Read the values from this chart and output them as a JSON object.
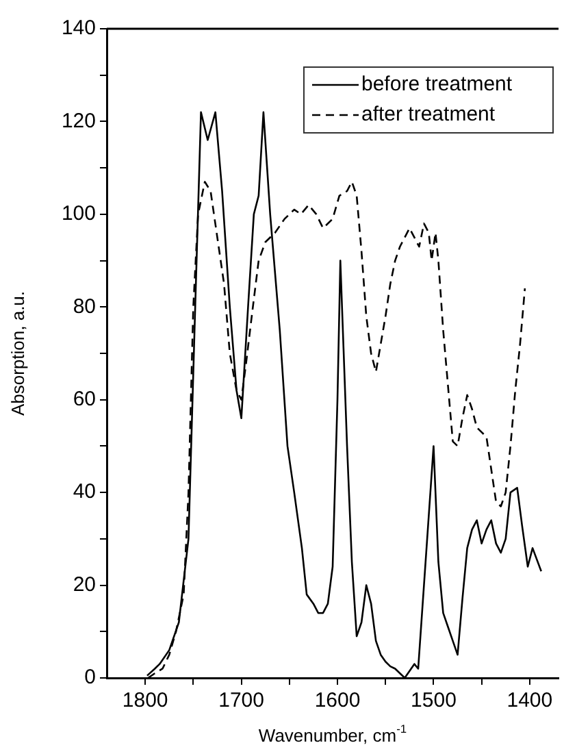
{
  "chart_data": {
    "type": "line",
    "xlabel": "Wavenumber, cm$^{-1}$",
    "ylabel": "Absorption, a.u.",
    "xlim": [
      1840,
      1370
    ],
    "ylim": [
      0,
      140
    ],
    "xticks": [
      1800,
      {
        "value": 1750,
        "label": null
      },
      1700,
      {
        "value": 1650,
        "label": null
      },
      1600,
      {
        "value": 1550,
        "label": null
      },
      1500,
      {
        "value": 1450,
        "label": null
      },
      1400
    ],
    "yticks": [
      0,
      {
        "value": 10,
        "label": null
      },
      20,
      {
        "value": 30,
        "label": null
      },
      40,
      {
        "value": 50,
        "label": null
      },
      60,
      {
        "value": 70,
        "label": null
      },
      80,
      {
        "value": 90,
        "label": null
      },
      100,
      {
        "value": 110,
        "label": null
      },
      120,
      {
        "value": 130,
        "label": null
      },
      140
    ],
    "legend": "top right",
    "grid": false,
    "marker": "none",
    "series": [
      {
        "name": "before treatment",
        "color": "#000000",
        "line_style": "solid",
        "x": [
          1798,
          1790,
          1785,
          1775,
          1765,
          1755,
          1748,
          1742,
          1735,
          1727,
          1720,
          1712,
          1705,
          1700,
          1693,
          1687,
          1682,
          1677,
          1670,
          1660,
          1652,
          1645,
          1637,
          1632,
          1625,
          1620,
          1615,
          1610,
          1605,
          1600,
          1597,
          1590,
          1585,
          1580,
          1575,
          1570,
          1565,
          1560,
          1555,
          1550,
          1545,
          1540,
          1535,
          1530,
          1520,
          1516,
          1510,
          1505,
          1500,
          1495,
          1490,
          1485,
          1480,
          1475,
          1470,
          1465,
          1460,
          1455,
          1450,
          1445,
          1440,
          1435,
          1430,
          1425,
          1420,
          1413,
          1408,
          1402,
          1397,
          1388
        ],
        "values": [
          0.5,
          2,
          3,
          6,
          12,
          30,
          80,
          122,
          116,
          122,
          105,
          80,
          62,
          56,
          80,
          100,
          104,
          122,
          100,
          75,
          50,
          40,
          28,
          18,
          16,
          14,
          14,
          16,
          24,
          60,
          90,
          50,
          25,
          9,
          12,
          20,
          16,
          8,
          5,
          3.5,
          2.5,
          2,
          1,
          0,
          3,
          2,
          20,
          35,
          50,
          25,
          14,
          11,
          8,
          5,
          17,
          28,
          32,
          34,
          29,
          32,
          34,
          29,
          27,
          30,
          40,
          41,
          33,
          24,
          28,
          23
        ]
      },
      {
        "name": "after treatment",
        "color": "#000000",
        "line_style": "dashed",
        "x": [
          1797,
          1790,
          1782,
          1775,
          1768,
          1760,
          1755,
          1750,
          1745,
          1738,
          1732,
          1725,
          1718,
          1712,
          1705,
          1700,
          1695,
          1688,
          1682,
          1675,
          1665,
          1655,
          1645,
          1638,
          1630,
          1622,
          1615,
          1605,
          1598,
          1590,
          1585,
          1580,
          1575,
          1570,
          1565,
          1560,
          1555,
          1550,
          1545,
          1540,
          1535,
          1525,
          1520,
          1515,
          1510,
          1505,
          1502,
          1498,
          1495,
          1490,
          1485,
          1480,
          1475,
          1470,
          1465,
          1460,
          1455,
          1450,
          1445,
          1440,
          1435,
          1430,
          1425,
          1420,
          1415,
          1410,
          1405
        ],
        "values": [
          0,
          1,
          2,
          5,
          10,
          18,
          40,
          80,
          100,
          107,
          105,
          95,
          85,
          70,
          62,
          60,
          68,
          80,
          90,
          94,
          96,
          99,
          101,
          100,
          102,
          100,
          97,
          99,
          104,
          105,
          107,
          104,
          92,
          78,
          70,
          66,
          72,
          78,
          85,
          90,
          93,
          97,
          95,
          93,
          98,
          96,
          90,
          96,
          90,
          75,
          63,
          51,
          50,
          56,
          61,
          58,
          54,
          53,
          52,
          45,
          38,
          37,
          40,
          50,
          62,
          72,
          84
        ]
      }
    ]
  }
}
